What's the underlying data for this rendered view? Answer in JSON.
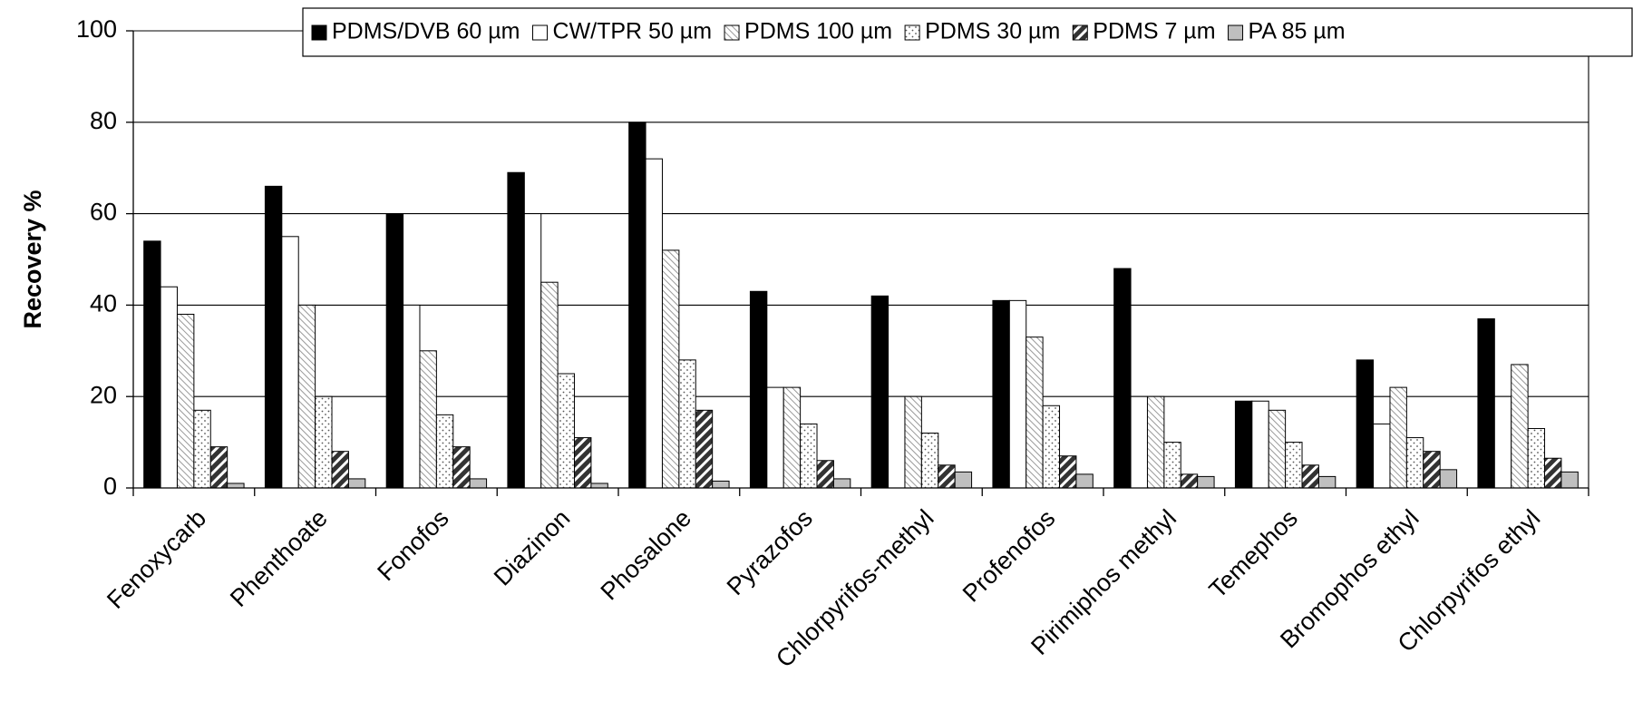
{
  "chart_data": {
    "type": "bar",
    "y_label": "Recovery %",
    "categories": [
      "Fenoxycarb",
      "Phenthoate",
      "Fonofos",
      "Diazinon",
      "Phosalone",
      "Pyrazofos",
      "Chlorpyrifos-methyl",
      "Profenofos",
      "Pirimiphos methyl",
      "Temephos",
      "Bromophos ethyl",
      "Chlorpyrifos ethyl"
    ],
    "series": [
      {
        "name": "PDMS/DVB 60 µm",
        "color": "#000000",
        "pattern": "solid",
        "values": [
          54,
          66,
          60,
          69,
          80,
          43,
          42,
          41,
          48,
          19,
          28,
          37
        ]
      },
      {
        "name": "CW/TPR 50 µm",
        "color": "#ffffff",
        "pattern": "solid",
        "values": [
          44,
          55,
          40,
          60,
          72,
          22,
          20,
          41,
          20,
          19,
          14,
          20
        ]
      },
      {
        "name": "PDMS 100 µm",
        "color": "#bbbbbb",
        "pattern": "hatch",
        "values": [
          38,
          40,
          30,
          45,
          52,
          22,
          20,
          33,
          20,
          17,
          22,
          27
        ]
      },
      {
        "name": "PDMS 30 µm",
        "color": "#555555",
        "pattern": "dots",
        "values": [
          17,
          20,
          16,
          25,
          28,
          14,
          12,
          18,
          10,
          10,
          11,
          13
        ]
      },
      {
        "name": "PDMS 7 µm",
        "color": "#333333",
        "pattern": "stripes",
        "values": [
          9,
          8,
          9,
          11,
          17,
          6,
          5,
          7,
          3,
          5,
          8,
          6.5
        ]
      },
      {
        "name": "PA 85 µm",
        "color": "#bfbfbf",
        "pattern": "solid",
        "values": [
          1,
          2,
          2,
          1,
          1.5,
          2,
          3.5,
          3,
          2.5,
          2.5,
          4,
          3.5
        ]
      }
    ],
    "ylim": [
      0,
      100
    ],
    "yticks": [
      0,
      20,
      40,
      60,
      80,
      100
    ],
    "grid": true,
    "legend": "top"
  }
}
